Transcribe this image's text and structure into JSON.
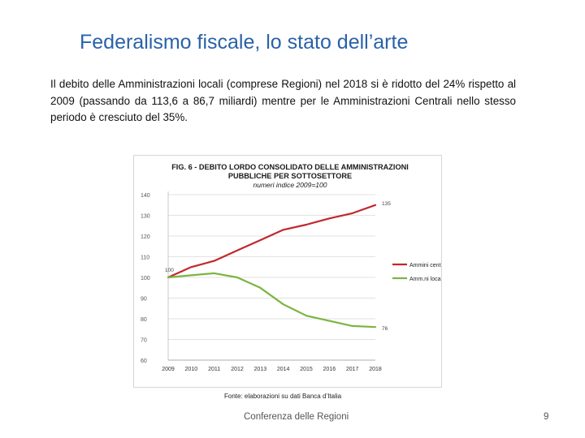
{
  "slide": {
    "title": "Federalismo fiscale, lo stato dell’arte",
    "body": "Il debito delle Amministrazioni locali (comprese Regioni) nel 2018 si è ridotto del 24% rispetto al 2009 (passando da 113,6 a 86,7 miliardi) mentre per le Amministrazioni Centrali nello stesso periodo è cresciuto del 35%.",
    "source": "Fonte: elaborazioni su dati Banca d’Italia",
    "footer": "Conferenza delle Regioni",
    "page_number": "9"
  },
  "colors": {
    "title": "#2a62a8",
    "centrali": "#c0282d",
    "locali": "#7ab542",
    "grid": "#d9d9d9"
  },
  "chart_data": {
    "type": "line",
    "title_lines": [
      "FIG. 6 - DEBITO LORDO CONSOLIDATO DELLE AMMINISTRAZIONI",
      "PUBBLICHE  PER SOTTOSETTORE"
    ],
    "subtitle": "numeri indice 2009=100",
    "x": [
      "2009",
      "2010",
      "2011",
      "2012",
      "2013",
      "2014",
      "2015",
      "2016",
      "2017",
      "2018"
    ],
    "ylim": [
      60,
      140
    ],
    "yticks": [
      "140",
      "130",
      "120",
      "110",
      "100",
      "90",
      "80",
      "70",
      "60"
    ],
    "grid": true,
    "legend": "right",
    "series": [
      {
        "name": "Ammini centrali",
        "key": "centrali",
        "values": [
          100,
          105,
          108,
          113,
          118,
          123,
          125.5,
          128.5,
          131,
          135
        ],
        "end_label": "135",
        "start_label": "100"
      },
      {
        "name": "Amm.ni locali",
        "key": "locali",
        "values": [
          100,
          101,
          102,
          100,
          95,
          87,
          81.5,
          79,
          76.5,
          76
        ],
        "end_label": "76"
      }
    ]
  }
}
